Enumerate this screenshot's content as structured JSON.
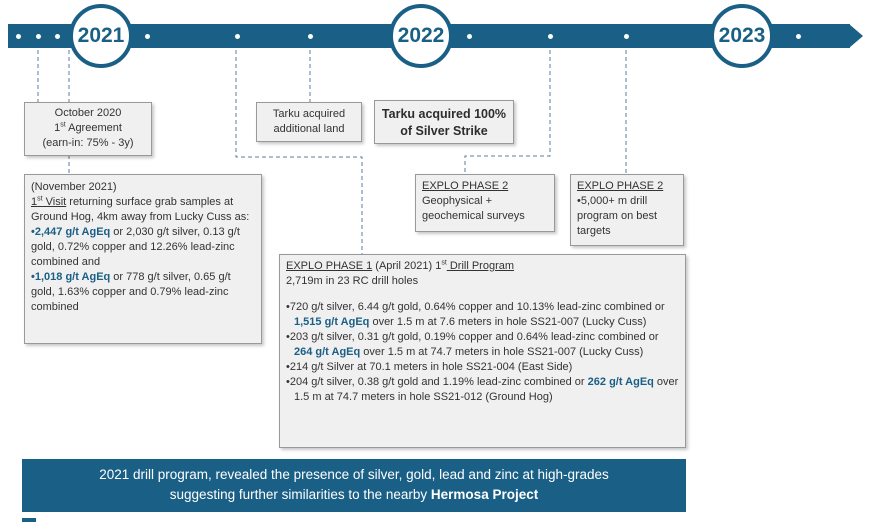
{
  "colors": {
    "primary": "#1a5f86",
    "box_bg": "#f0f0f0",
    "text": "#333333",
    "connector": "#5a7fa0"
  },
  "timeline": {
    "years": [
      "2021",
      "2022",
      "2023"
    ]
  },
  "box_oct2020": {
    "line1": "October 2020",
    "line2_num": "1",
    "line2_sup": "st",
    "line2_rest": " Agreement",
    "line3": "(earn-in: 75% - 3y)"
  },
  "box_tarku_land": {
    "line1": "Tarku acquired",
    "line2": "additional land"
  },
  "box_tarku_silver": {
    "line1": "Tarku acquired 100%",
    "line2": "of Silver Strike"
  },
  "box_nov2021": {
    "date": "(November 2021)",
    "visit_num": "1",
    "visit_sup": "st",
    "visit_word": " Visit",
    "intro": " returning surface grab samples at Ground Hog, 4km away from Lucky Cuss as:",
    "b1_bullet": "•",
    "b1_hl": "2,447 g/t AgEq",
    "b1_rest": " or 2,030 g/t silver, 0.13 g/t gold, 0.72% copper and 12.26% lead-zinc combined and",
    "b2_bullet": "•",
    "b2_hl": "1,018 g/t AgEq",
    "b2_rest": " or 778 g/t silver, 0.65 g/t gold, 1.63% copper and 0.79% lead-zinc combined"
  },
  "box_explo2_geo": {
    "title": "EXPLO PHASE 2",
    "body": "Geophysical + geochemical surveys"
  },
  "box_explo2_drill": {
    "title": "EXPLO PHASE 2",
    "body": "•5,000+ m drill program on best targets"
  },
  "box_explo1": {
    "title": "EXPLO PHASE 1",
    "date": " (April 2021) ",
    "num": "1",
    "sup": "st",
    "prog": " Drill Program",
    "line2": "2,719m in 23 RC drill holes",
    "r1_a": "•720 g/t silver, 6.44 g/t gold, 0.64% copper and 10.13% lead-zinc combined or ",
    "r1_hl": "1,515 g/t AgEq",
    "r1_b": " over 1.5 m at 7.6 meters in hole SS21-007 (Lucky Cuss)",
    "r2_a": "•203 g/t silver, 0.31 g/t gold, 0.19% copper and 0.64% lead-zinc combined or ",
    "r2_hl": "264 g/t AgEq",
    "r2_b": " over 1.5 m at 74.7 meters in hole SS21-007 (Lucky Cuss)",
    "r3": "•214 g/t Silver at 70.1 meters in hole SS21-004 (East Side)",
    "r4_a": "•204 g/t silver, 0.38 g/t gold and 1.19% lead-zinc combined or ",
    "r4_hl": "262 g/t AgEq",
    "r4_b": " over 1.5 m at 74.7 meters in hole SS21-012 (Ground Hog)"
  },
  "banner": {
    "line1": "2021 drill program, revealed the presence of silver, gold, lead and zinc at high-grades",
    "line2_pre": "suggesting further similarities to the nearby ",
    "line2_bold": "Hermosa Project"
  }
}
